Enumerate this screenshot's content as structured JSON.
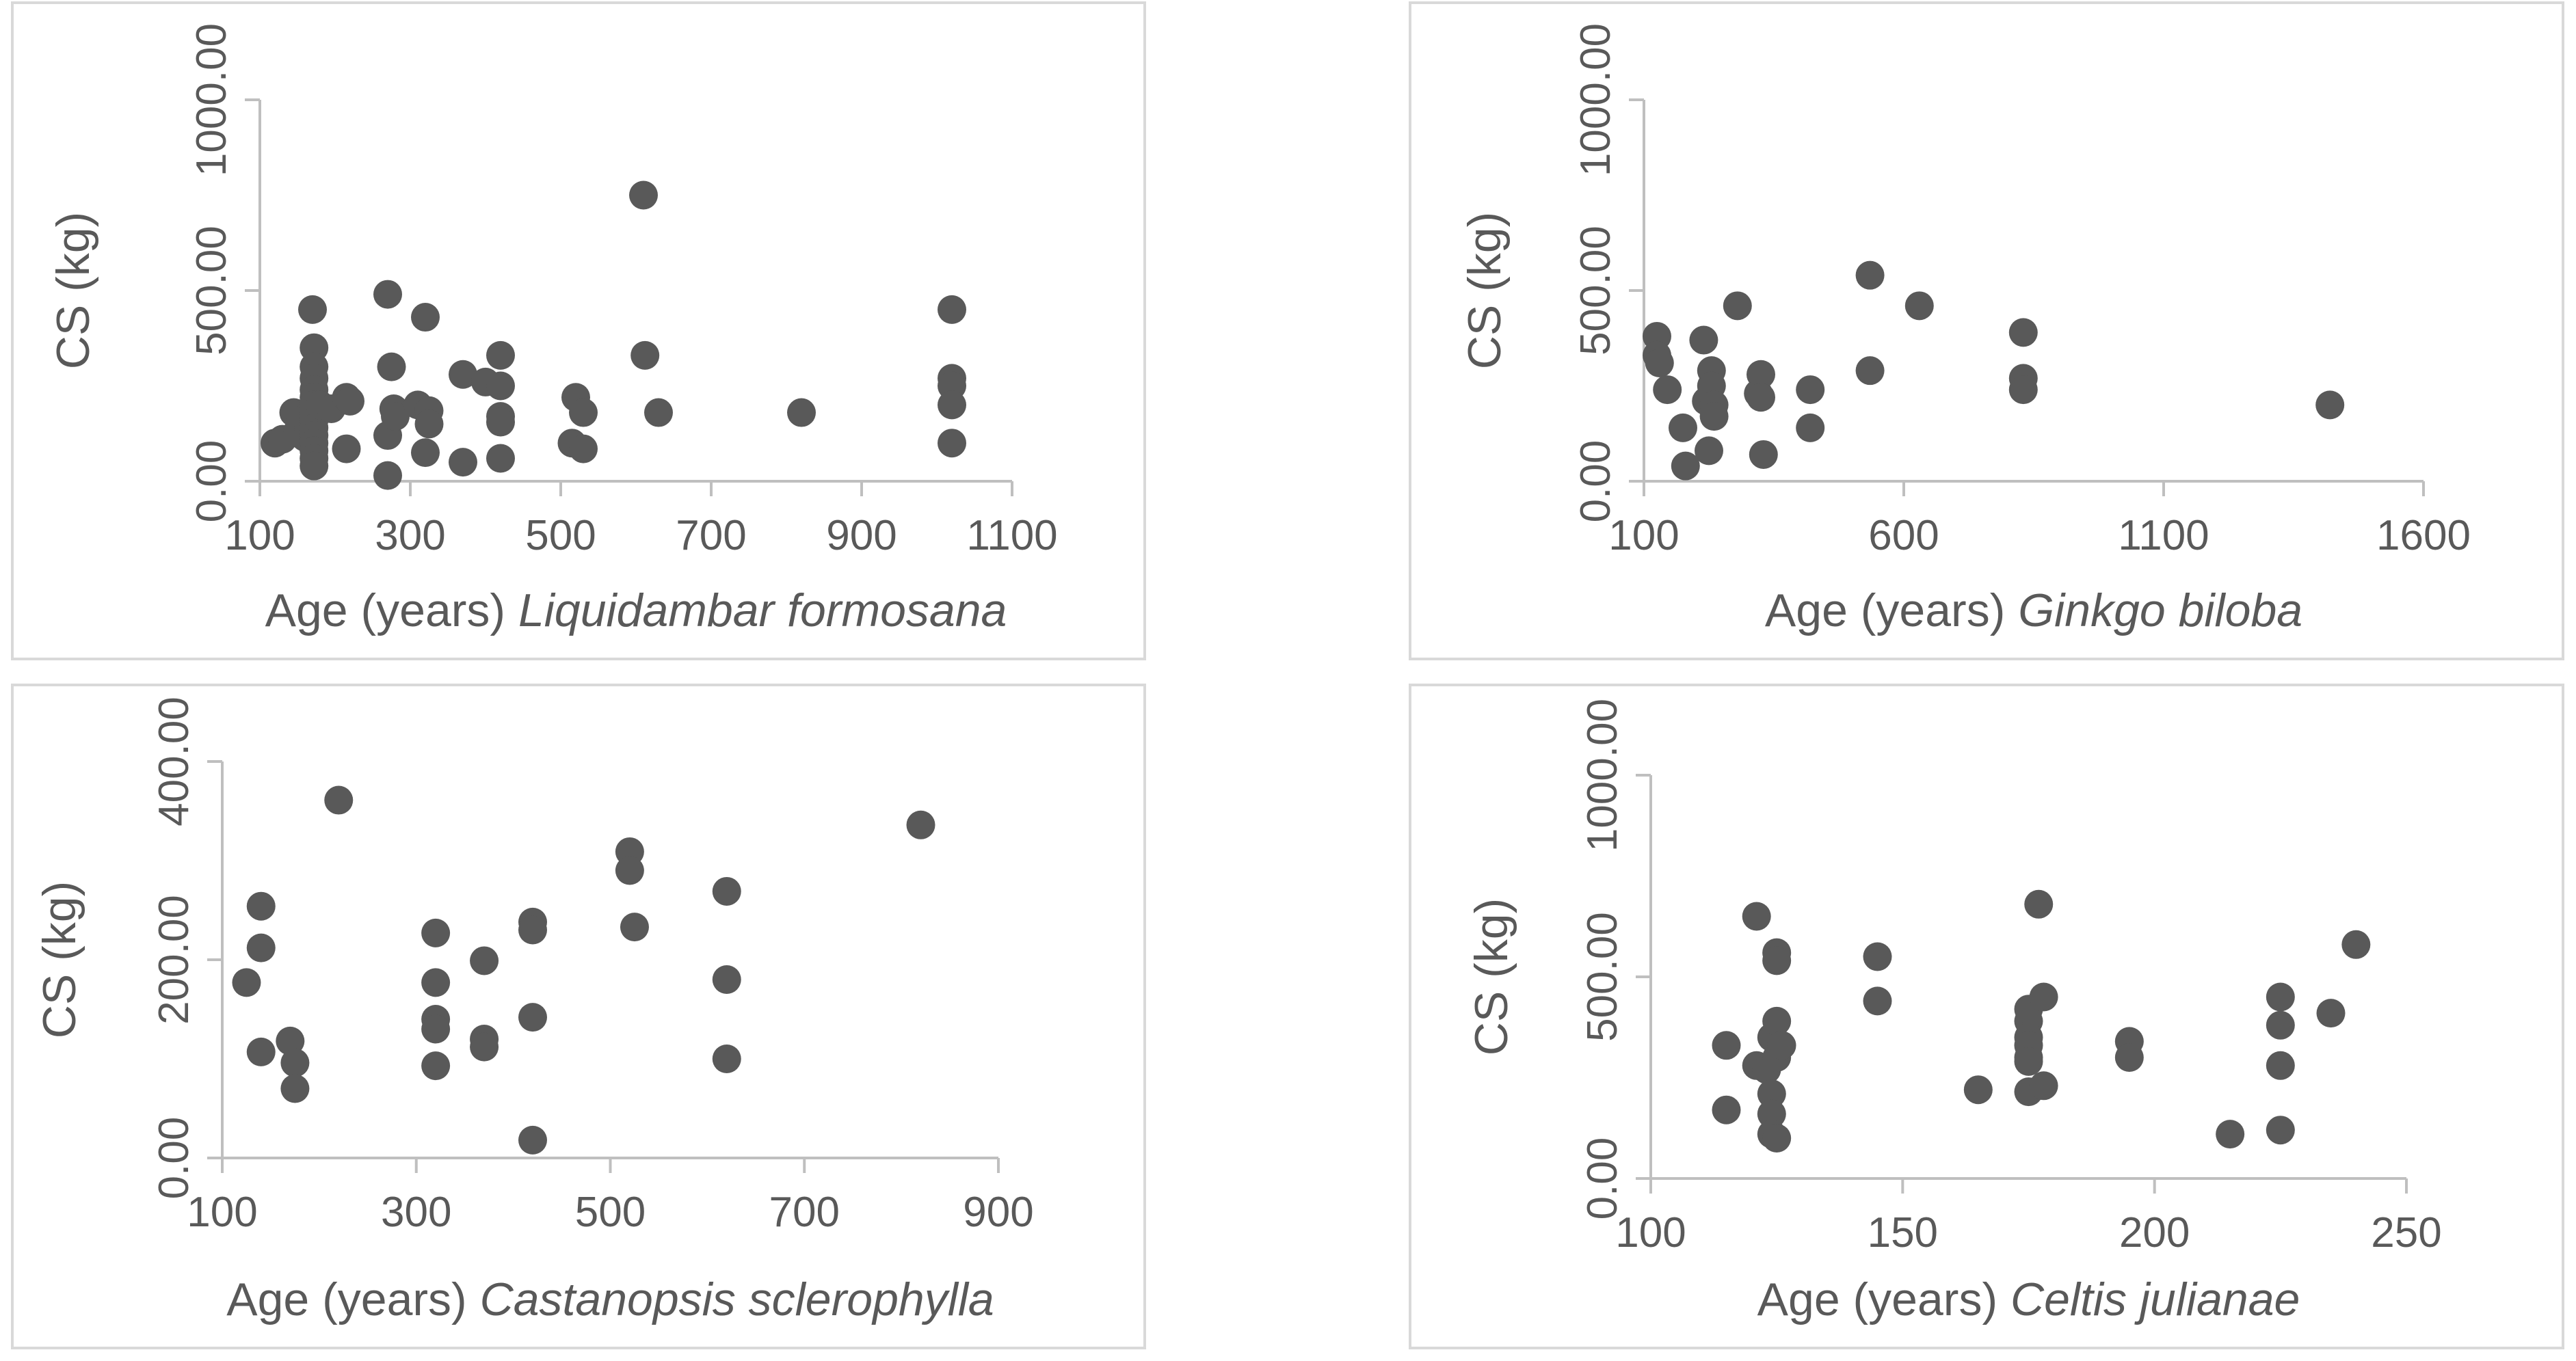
{
  "chart_data": [
    {
      "type": "scatter",
      "title": "",
      "xlabel": "Age (years)",
      "species": "Liquidambar formosana",
      "ylabel": "CS (kg)",
      "xlim": [
        100,
        1100
      ],
      "ylim": [
        0,
        1000
      ],
      "xticks": [
        "100",
        "300",
        "500",
        "700",
        "900",
        "1100"
      ],
      "yticks": [
        "0.00",
        "500.00",
        "1000.00"
      ],
      "marker_color": "#595959",
      "points": [
        [
          120,
          100
        ],
        [
          130,
          110
        ],
        [
          145,
          180
        ],
        [
          150,
          130
        ],
        [
          155,
          160
        ],
        [
          160,
          115
        ],
        [
          165,
          140
        ],
        [
          170,
          450
        ],
        [
          172,
          350
        ],
        [
          172,
          300
        ],
        [
          172,
          270
        ],
        [
          172,
          240
        ],
        [
          172,
          220
        ],
        [
          172,
          200
        ],
        [
          172,
          180
        ],
        [
          172,
          160
        ],
        [
          172,
          140
        ],
        [
          172,
          120
        ],
        [
          172,
          100
        ],
        [
          172,
          80
        ],
        [
          172,
          60
        ],
        [
          172,
          40
        ],
        [
          180,
          200
        ],
        [
          195,
          190
        ],
        [
          215,
          220
        ],
        [
          220,
          210
        ],
        [
          215,
          85
        ],
        [
          270,
          490
        ],
        [
          270,
          120
        ],
        [
          270,
          15
        ],
        [
          275,
          300
        ],
        [
          278,
          190
        ],
        [
          280,
          170
        ],
        [
          310,
          200
        ],
        [
          320,
          430
        ],
        [
          325,
          185
        ],
        [
          325,
          150
        ],
        [
          320,
          75
        ],
        [
          370,
          280
        ],
        [
          370,
          50
        ],
        [
          400,
          260
        ],
        [
          420,
          330
        ],
        [
          420,
          250
        ],
        [
          420,
          170
        ],
        [
          420,
          155
        ],
        [
          420,
          60
        ],
        [
          515,
          100
        ],
        [
          520,
          220
        ],
        [
          530,
          180
        ],
        [
          530,
          85
        ],
        [
          610,
          750
        ],
        [
          612,
          330
        ],
        [
          630,
          180
        ],
        [
          820,
          180
        ],
        [
          1020,
          450
        ],
        [
          1020,
          270
        ],
        [
          1020,
          250
        ],
        [
          1020,
          200
        ],
        [
          1020,
          100
        ]
      ]
    },
    {
      "type": "scatter",
      "title": "",
      "xlabel": "Age (years)",
      "species": "Ginkgo biloba",
      "ylabel": "CS (kg)",
      "xlim": [
        100,
        1600
      ],
      "ylim": [
        0,
        1000
      ],
      "xticks": [
        "100",
        "600",
        "1100",
        "1600"
      ],
      "yticks": [
        "0.00",
        "500.00",
        "1000.00"
      ],
      "marker_color": "#595959",
      "points": [
        [
          125,
          380
        ],
        [
          125,
          330
        ],
        [
          130,
          310
        ],
        [
          145,
          240
        ],
        [
          175,
          140
        ],
        [
          180,
          40
        ],
        [
          215,
          370
        ],
        [
          220,
          210
        ],
        [
          225,
          80
        ],
        [
          230,
          290
        ],
        [
          230,
          250
        ],
        [
          235,
          200
        ],
        [
          235,
          170
        ],
        [
          280,
          460
        ],
        [
          320,
          230
        ],
        [
          325,
          280
        ],
        [
          325,
          220
        ],
        [
          330,
          70
        ],
        [
          420,
          240
        ],
        [
          420,
          140
        ],
        [
          535,
          540
        ],
        [
          535,
          290
        ],
        [
          630,
          460
        ],
        [
          830,
          390
        ],
        [
          830,
          270
        ],
        [
          830,
          240
        ],
        [
          1420,
          200
        ]
      ]
    },
    {
      "type": "scatter",
      "title": "",
      "xlabel": "Age (years)",
      "species": "Castanopsis sclerophylla",
      "ylabel": "CS (kg)",
      "xlim": [
        100,
        900
      ],
      "ylim": [
        0,
        400
      ],
      "xticks": [
        "100",
        "300",
        "500",
        "700",
        "900"
      ],
      "yticks": [
        "0.00",
        "200.00",
        "400.00"
      ],
      "marker_color": "#595959",
      "points": [
        [
          125,
          177
        ],
        [
          140,
          254
        ],
        [
          140,
          212
        ],
        [
          140,
          107
        ],
        [
          170,
          118
        ],
        [
          175,
          96
        ],
        [
          175,
          70
        ],
        [
          220,
          361
        ],
        [
          320,
          227
        ],
        [
          320,
          177
        ],
        [
          320,
          140
        ],
        [
          320,
          130
        ],
        [
          320,
          93
        ],
        [
          370,
          199
        ],
        [
          370,
          120
        ],
        [
          370,
          112
        ],
        [
          420,
          238
        ],
        [
          420,
          230
        ],
        [
          420,
          142
        ],
        [
          420,
          18
        ],
        [
          520,
          309
        ],
        [
          520,
          290
        ],
        [
          525,
          233
        ],
        [
          620,
          269
        ],
        [
          620,
          180
        ],
        [
          620,
          100
        ],
        [
          820,
          336
        ]
      ]
    },
    {
      "type": "scatter",
      "title": "",
      "xlabel": "Age (years)",
      "species": "Celtis julianae",
      "ylabel": "CS (kg)",
      "xlim": [
        100,
        250
      ],
      "ylim": [
        0,
        1000
      ],
      "xticks": [
        "100",
        "150",
        "200",
        "250"
      ],
      "yticks": [
        "0.00",
        "500.00",
        "1000.00"
      ],
      "marker_color": "#595959",
      "points": [
        [
          115,
          330
        ],
        [
          115,
          170
        ],
        [
          121,
          650
        ],
        [
          121,
          280
        ],
        [
          123,
          270
        ],
        [
          124,
          350
        ],
        [
          125,
          390
        ],
        [
          125,
          300
        ],
        [
          126,
          330
        ],
        [
          124,
          210
        ],
        [
          124,
          160
        ],
        [
          124,
          110
        ],
        [
          125,
          100
        ],
        [
          125,
          560
        ],
        [
          125,
          540
        ],
        [
          145,
          550
        ],
        [
          145,
          440
        ],
        [
          165,
          220
        ],
        [
          175,
          390
        ],
        [
          175,
          420
        ],
        [
          175,
          350
        ],
        [
          175,
          300
        ],
        [
          175,
          330
        ],
        [
          175,
          290
        ],
        [
          175,
          215
        ],
        [
          177,
          680
        ],
        [
          178,
          450
        ],
        [
          178,
          230
        ],
        [
          195,
          340
        ],
        [
          195,
          300
        ],
        [
          215,
          110
        ],
        [
          225,
          450
        ],
        [
          225,
          380
        ],
        [
          225,
          280
        ],
        [
          225,
          120
        ],
        [
          235,
          410
        ],
        [
          240,
          580
        ]
      ]
    }
  ]
}
